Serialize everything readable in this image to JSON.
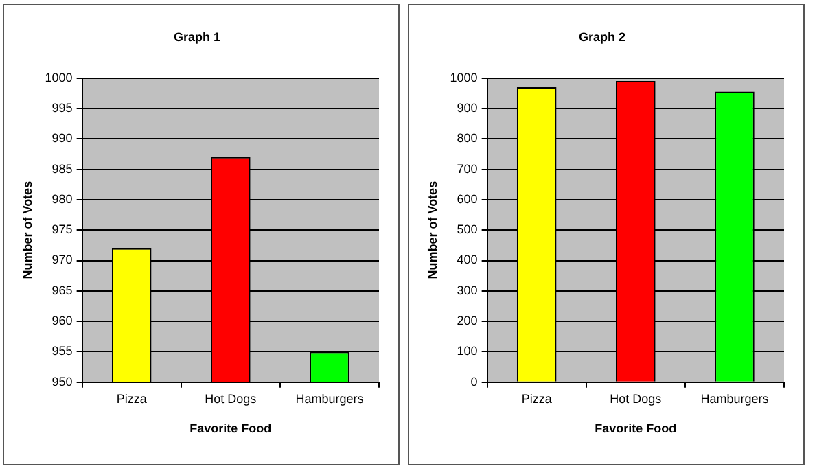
{
  "chart_data": [
    {
      "type": "bar",
      "title": "Graph 1",
      "xlabel": "Favorite Food",
      "ylabel": "Number of Votes",
      "categories": [
        "Pizza",
        "Hot Dogs",
        "Hamburgers"
      ],
      "series": [
        {
          "colors": [
            "#ffff00",
            "#ff0000",
            "#00ff00"
          ],
          "values": [
            972,
            987,
            955
          ]
        }
      ],
      "ylim": [
        950,
        1000
      ],
      "yticks": [
        950,
        955,
        960,
        965,
        970,
        975,
        980,
        985,
        990,
        995,
        1000
      ],
      "grid": "y",
      "legend": false
    },
    {
      "type": "bar",
      "title": "Graph 2",
      "xlabel": "Favorite Food",
      "ylabel": "Number of Votes",
      "categories": [
        "Pizza",
        "Hot Dogs",
        "Hamburgers"
      ],
      "series": [
        {
          "colors": [
            "#ffff00",
            "#ff0000",
            "#00ff00"
          ],
          "values": [
            970,
            990,
            955
          ]
        }
      ],
      "ylim": [
        0,
        1000
      ],
      "yticks": [
        0,
        100,
        200,
        300,
        400,
        500,
        600,
        700,
        800,
        900,
        1000
      ],
      "grid": "y",
      "legend": false
    }
  ]
}
